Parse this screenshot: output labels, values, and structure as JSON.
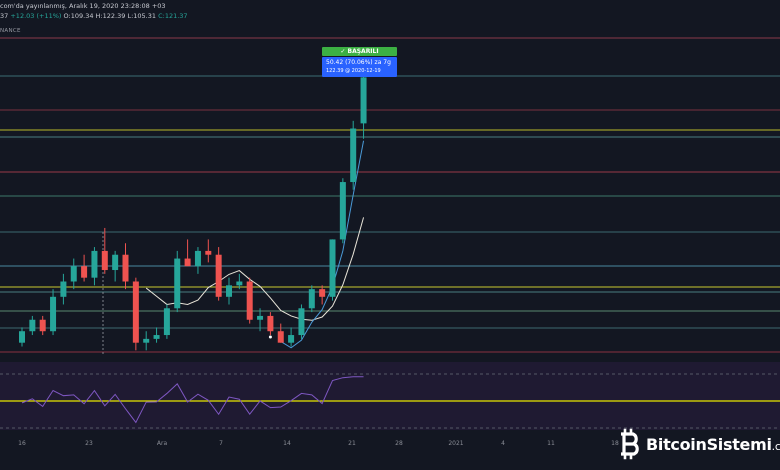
{
  "header": {
    "published_text": "com'da yayınlanmış, Aralık 19, 2020 23:28:08 +03",
    "ohlc_prefix": "37",
    "change": "+12.03 (+11%)",
    "open": "O:109.34",
    "high": "H:122.39",
    "low": "L:105.31",
    "close": "C:121.37",
    "exchange": "NANCE"
  },
  "annotation": {
    "badge": "✓ BAŞARILI",
    "line1": "50.42 (70.06%) za 7g",
    "line2": "122.39 @ 2020-12-19"
  },
  "watermark": {
    "text": "BitcoinSistemi",
    "suffix": ".com"
  },
  "colors": {
    "background": "#131722",
    "bull": "#26a69a",
    "bear": "#ef5350",
    "ma_line": "#e8e4d8",
    "ma_line2": "#4a9ad8",
    "rsi": "#7e57c2",
    "rsi_band": "#2a1e3f",
    "level_yellow": "#e6e600"
  },
  "chart_data": {
    "type": "candlestick",
    "x_tick_labels": [
      "16",
      "23",
      "Ara",
      "7",
      "14",
      "21",
      "28",
      "2021",
      "4",
      "11",
      "18"
    ],
    "candles": [
      {
        "o": 52,
        "h": 56,
        "l": 51,
        "c": 55
      },
      {
        "o": 55,
        "h": 59,
        "l": 54,
        "c": 58
      },
      {
        "o": 58,
        "h": 59,
        "l": 54,
        "c": 55
      },
      {
        "o": 55,
        "h": 66,
        "l": 54,
        "c": 64
      },
      {
        "o": 64,
        "h": 70,
        "l": 62,
        "c": 68
      },
      {
        "o": 68,
        "h": 74,
        "l": 66,
        "c": 72
      },
      {
        "o": 72,
        "h": 75,
        "l": 68,
        "c": 69
      },
      {
        "o": 69,
        "h": 77,
        "l": 67,
        "c": 76
      },
      {
        "o": 76,
        "h": 82,
        "l": 70,
        "c": 71
      },
      {
        "o": 71,
        "h": 76,
        "l": 68,
        "c": 75
      },
      {
        "o": 75,
        "h": 78,
        "l": 66,
        "c": 68
      },
      {
        "o": 68,
        "h": 69,
        "l": 50,
        "c": 52
      },
      {
        "o": 52,
        "h": 55,
        "l": 50,
        "c": 53
      },
      {
        "o": 53,
        "h": 56,
        "l": 52,
        "c": 54
      },
      {
        "o": 54,
        "h": 62,
        "l": 53,
        "c": 61
      },
      {
        "o": 61,
        "h": 76,
        "l": 60,
        "c": 74
      },
      {
        "o": 74,
        "h": 79,
        "l": 72,
        "c": 72
      },
      {
        "o": 72,
        "h": 77,
        "l": 70,
        "c": 76
      },
      {
        "o": 76,
        "h": 79,
        "l": 73,
        "c": 75
      },
      {
        "o": 75,
        "h": 77,
        "l": 63,
        "c": 64
      },
      {
        "o": 64,
        "h": 69,
        "l": 62,
        "c": 67
      },
      {
        "o": 67,
        "h": 70,
        "l": 66,
        "c": 68
      },
      {
        "o": 68,
        "h": 69,
        "l": 57,
        "c": 58
      },
      {
        "o": 58,
        "h": 61,
        "l": 55,
        "c": 59
      },
      {
        "o": 59,
        "h": 60,
        "l": 54,
        "c": 55
      },
      {
        "o": 55,
        "h": 57,
        "l": 52,
        "c": 52
      },
      {
        "o": 52,
        "h": 56,
        "l": 51,
        "c": 54
      },
      {
        "o": 54,
        "h": 62,
        "l": 53,
        "c": 61
      },
      {
        "o": 61,
        "h": 67,
        "l": 60,
        "c": 66
      },
      {
        "o": 66,
        "h": 67,
        "l": 62,
        "c": 64
      },
      {
        "o": 64,
        "h": 79,
        "l": 63,
        "c": 79
      },
      {
        "o": 79,
        "h": 95,
        "l": 78,
        "c": 94
      },
      {
        "o": 94,
        "h": 110,
        "l": 92,
        "c": 108
      },
      {
        "o": 109.34,
        "h": 122.39,
        "l": 105.31,
        "c": 121.37
      }
    ],
    "x_range": [
      0,
      44
    ],
    "y_range": [
      48,
      128
    ]
  }
}
